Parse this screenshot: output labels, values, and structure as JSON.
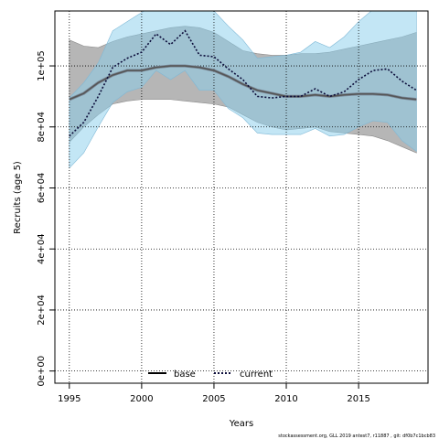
{
  "chart_data": {
    "type": "line",
    "title": "",
    "xlabel": "Years",
    "ylabel": "Recruits (age 5)",
    "xlim": [
      1994,
      2019.8
    ],
    "ylim": [
      -4000,
      118000
    ],
    "x_ticks": [
      1995,
      2000,
      2005,
      2010,
      2015
    ],
    "x_tick_labels": [
      "1995",
      "2000",
      "2005",
      "2010",
      "2015"
    ],
    "y_ticks": [
      0,
      20000,
      40000,
      60000,
      80000,
      100000
    ],
    "y_tick_labels": [
      "0e+00",
      "2e+04",
      "4e+04",
      "6e+04",
      "8e+04",
      "1e+05"
    ],
    "grid": true,
    "legend_position": "bottom-center",
    "x": [
      1995,
      1996,
      1997,
      1998,
      1999,
      2000,
      2001,
      2002,
      2003,
      2004,
      2005,
      2006,
      2007,
      2008,
      2009,
      2010,
      2011,
      2012,
      2013,
      2014,
      2015,
      2016,
      2017,
      2018,
      2019
    ],
    "series": [
      {
        "name": "base",
        "line_style": "solid",
        "color": "#555555",
        "band_color": "#a9a9a9",
        "values": [
          89000,
          91000,
          94500,
          97000,
          98500,
          98500,
          99500,
          100000,
          100000,
          99500,
          98500,
          96500,
          94000,
          92000,
          91000,
          90000,
          90000,
          90500,
          90000,
          90500,
          90800,
          90800,
          90500,
          89500,
          89000
        ],
        "upper": [
          108500,
          106500,
          106000,
          108000,
          109500,
          110500,
          111500,
          112500,
          113000,
          112500,
          111000,
          108000,
          105000,
          104000,
          103500,
          103500,
          104000,
          104000,
          104500,
          105500,
          106500,
          107500,
          108500,
          109500,
          111000
        ],
        "lower": [
          75000,
          80000,
          84000,
          87500,
          88500,
          89000,
          89000,
          89000,
          88500,
          88000,
          87500,
          86500,
          84000,
          81500,
          80000,
          79000,
          79500,
          80000,
          78500,
          78000,
          77500,
          77000,
          75500,
          73500,
          71500
        ]
      },
      {
        "name": "current",
        "line_style": "dotted",
        "color": "#0b0c3a",
        "band_color": "#87ceeb",
        "values": [
          77000,
          81500,
          90000,
          99500,
          102500,
          104500,
          110500,
          107000,
          111500,
          103500,
          103000,
          99000,
          95500,
          90000,
          89500,
          90000,
          90000,
          92500,
          90000,
          91500,
          95500,
          98500,
          99000,
          95000,
          92000
        ],
        "upper": [
          89500,
          94500,
          101000,
          111500,
          114500,
          117500,
          120000,
          120000,
          120000,
          120000,
          118000,
          113000,
          108500,
          102500,
          103000,
          103500,
          104500,
          108000,
          106000,
          109500,
          114500,
          118500,
          120000,
          120000,
          120000
        ],
        "lower": [
          66500,
          71500,
          80000,
          88000,
          91500,
          93000,
          98500,
          95500,
          98500,
          92000,
          92000,
          86000,
          83000,
          78000,
          77500,
          77500,
          77500,
          79500,
          77000,
          77500,
          80000,
          82000,
          81500,
          75500,
          72000
        ]
      }
    ]
  },
  "footnote": "stockassessment.org, GLL 2019 antest7, r11887 , git: df0b7c1bcb83"
}
